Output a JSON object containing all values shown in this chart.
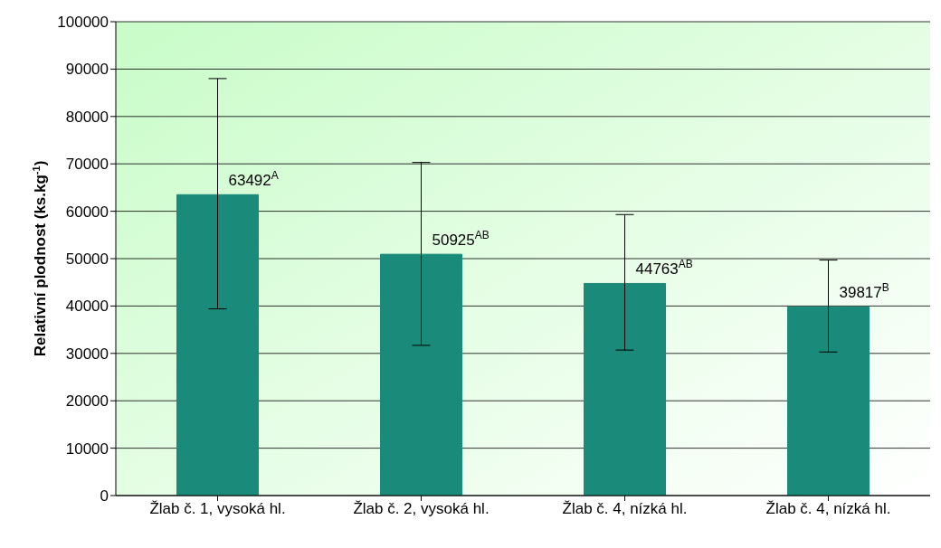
{
  "chart_data": {
    "type": "bar",
    "ylabel": "Relativní plodnost (ks.kg$^{-1}$)",
    "categories": [
      "Žlab č. 1, vysoká hl.",
      "Žlab č. 2, vysoká hl.",
      "Žlab č. 4, nízká hl.",
      "Žlab č. 4, nízká hl."
    ],
    "values": [
      63492,
      50925,
      44763,
      39817
    ],
    "errors": [
      [
        39400,
        88000
      ],
      [
        31700,
        70300
      ],
      [
        30700,
        59300
      ],
      [
        30300,
        49700
      ]
    ],
    "value_labels": [
      "63492$^{A}$",
      "50925$^{AB}$",
      "44763$^{AB}$",
      "39817$^{B}$"
    ],
    "color": "#1a8a7a",
    "ylim": [
      0,
      100000
    ],
    "yticks": [
      0,
      10000,
      20000,
      30000,
      40000,
      50000,
      60000,
      70000,
      80000,
      90000,
      100000
    ],
    "grid": "y"
  }
}
